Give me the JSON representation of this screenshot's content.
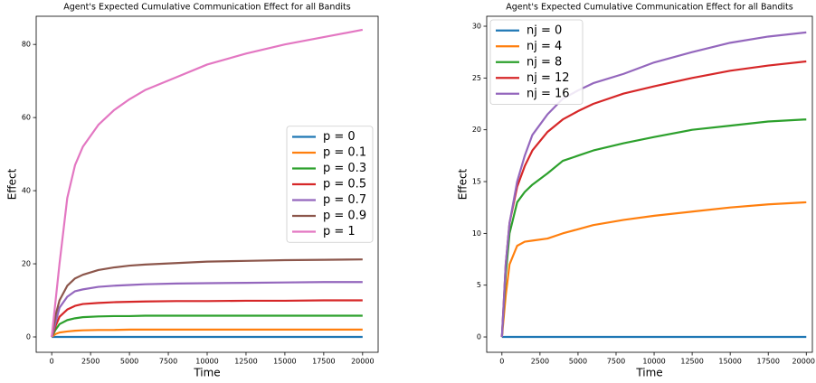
{
  "chart_data": [
    {
      "type": "line",
      "title": "Agent's Expected Cumulative Communication Effect for all Bandits",
      "x_label": "Time",
      "y_label": "Effect",
      "x": [
        0,
        250,
        500,
        1000,
        1500,
        2000,
        3000,
        4000,
        5000,
        6000,
        8000,
        10000,
        12500,
        15000,
        17500,
        20000
      ],
      "series": [
        {
          "name": "p = 0",
          "color": "#1f77b4",
          "values": [
            0,
            0,
            0,
            0,
            0,
            0,
            0,
            0,
            0,
            0,
            0,
            0,
            0,
            0,
            0,
            0
          ]
        },
        {
          "name": "p = 0.1",
          "color": "#ff7f0e",
          "values": [
            0,
            0.8,
            1.2,
            1.5,
            1.7,
            1.8,
            1.9,
            1.9,
            2,
            2,
            2,
            2,
            2,
            2,
            2,
            2
          ]
        },
        {
          "name": "p = 0.3",
          "color": "#2ca02c",
          "values": [
            0,
            2,
            3.5,
            4.6,
            5.1,
            5.4,
            5.6,
            5.7,
            5.7,
            5.8,
            5.8,
            5.8,
            5.8,
            5.8,
            5.8,
            5.8
          ]
        },
        {
          "name": "p = 0.5",
          "color": "#d62728",
          "values": [
            0,
            3,
            5.5,
            7.5,
            8.5,
            9,
            9.3,
            9.5,
            9.6,
            9.7,
            9.8,
            9.8,
            9.9,
            9.9,
            10,
            10
          ]
        },
        {
          "name": "p = 0.7",
          "color": "#9467bd",
          "values": [
            0,
            4,
            8,
            11,
            12.5,
            13,
            13.7,
            14,
            14.2,
            14.4,
            14.6,
            14.7,
            14.8,
            14.9,
            15,
            15
          ]
        },
        {
          "name": "p = 0.9",
          "color": "#8c564b",
          "values": [
            0,
            6,
            10,
            14,
            16,
            17,
            18.3,
            19,
            19.5,
            19.8,
            20.2,
            20.6,
            20.8,
            21,
            21.1,
            21.2
          ]
        },
        {
          "name": "p = 1",
          "color": "#e377c2",
          "values": [
            0,
            10,
            20,
            38,
            47,
            52,
            58,
            62,
            65,
            67.5,
            71,
            74.5,
            77.5,
            80,
            82,
            84
          ]
        }
      ],
      "xlim": [
        -1000,
        21000
      ],
      "ylim": [
        -4.2,
        87.7
      ],
      "xticks": [
        0,
        2500,
        5000,
        7500,
        10000,
        12500,
        15000,
        17500,
        20000
      ],
      "yticks": [
        0,
        20,
        40,
        60,
        80
      ],
      "legend": "center right"
    },
    {
      "type": "line",
      "title": "Agent's Expected Cumulative Communication Effect for all Bandits",
      "x_label": "Time",
      "y_label": "Effect",
      "x": [
        0,
        250,
        500,
        1000,
        1500,
        2000,
        3000,
        4000,
        5000,
        6000,
        8000,
        10000,
        12500,
        15000,
        17500,
        20000
      ],
      "series": [
        {
          "name": "nj = 0",
          "color": "#1f77b4",
          "values": [
            0,
            0,
            0,
            0,
            0,
            0,
            0,
            0,
            0,
            0,
            0,
            0,
            0,
            0,
            0,
            0
          ]
        },
        {
          "name": "nj = 4",
          "color": "#ff7f0e",
          "values": [
            0,
            4,
            7,
            8.8,
            9.2,
            9.3,
            9.5,
            10,
            10.4,
            10.8,
            11.3,
            11.7,
            12.1,
            12.5,
            12.8,
            13
          ]
        },
        {
          "name": "nj = 8",
          "color": "#2ca02c",
          "values": [
            0,
            6,
            10,
            13,
            14,
            14.7,
            15.8,
            17,
            17.5,
            18,
            18.7,
            19.3,
            20,
            20.4,
            20.8,
            21
          ]
        },
        {
          "name": "nj = 12",
          "color": "#d62728",
          "values": [
            0,
            7,
            11,
            14.5,
            16.5,
            18,
            19.8,
            21,
            21.8,
            22.5,
            23.5,
            24.2,
            25,
            25.7,
            26.2,
            26.6
          ]
        },
        {
          "name": "nj = 16",
          "color": "#9467bd",
          "values": [
            0,
            7,
            11,
            15,
            17.5,
            19.5,
            21.5,
            23,
            23.8,
            24.5,
            25.4,
            26.5,
            27.5,
            28.4,
            29,
            29.4
          ]
        }
      ],
      "xlim": [
        -1000,
        20400
      ],
      "ylim": [
        -1.48,
        30.96
      ],
      "xticks": [
        0,
        2500,
        5000,
        7500,
        10000,
        12500,
        15000,
        17500,
        20000
      ],
      "yticks": [
        0,
        5,
        10,
        15,
        20,
        25,
        30
      ],
      "legend": "upper left"
    }
  ]
}
